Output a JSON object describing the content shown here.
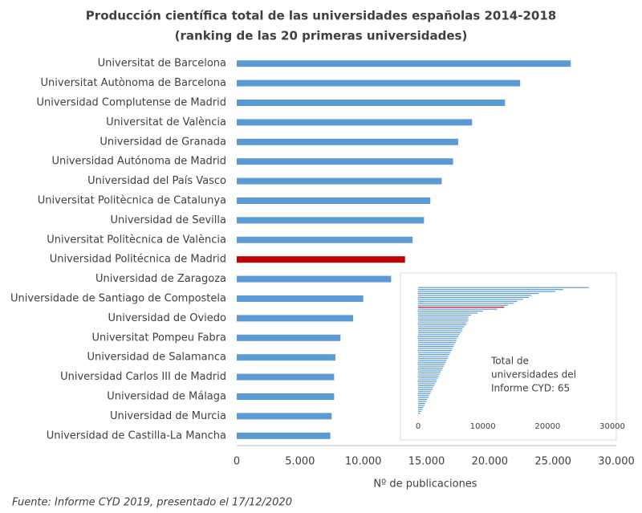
{
  "chart_data": [
    {
      "type": "hbar",
      "title": "Producción científica total de las universidades españolas 2014-2018",
      "subtitle": "(ranking de las 20 primeras universidades)",
      "categories": [
        "Universitat de Barcelona",
        "Universitat Autònoma de Barcelona",
        "Universidad Complutense de Madrid",
        "Universitat de València",
        "Universidad de Granada",
        "Universidad Autónoma de Madrid",
        "Universidad del País Vasco",
        "Universitat Politècnica de Catalunya",
        "Universidad de Sevilla",
        "Universitat Politècnica de València",
        "Universidad Politécnica de Madrid",
        "Universidad de Zaragoza",
        "Universidade de Santiago de Compostela",
        "Universidad de Oviedo",
        "Universitat Pompeu Fabra",
        "Universidad de Salamanca",
        "Universidad Carlos III de Madrid",
        "Universidad de Málaga",
        "Universidad de Murcia",
        "Universidad de Castilla-La Mancha"
      ],
      "values": [
        26400,
        22400,
        21200,
        18600,
        17500,
        17100,
        16200,
        15300,
        14800,
        13900,
        13300,
        12200,
        10000,
        9200,
        8200,
        7800,
        7700,
        7700,
        7500,
        7400
      ],
      "color": "#5b9bd5",
      "highlight_index": 10,
      "highlight_color": "#c00000",
      "xlim": [
        0,
        30000
      ],
      "xticks": [
        0,
        {
          "value": 5000,
          "label": "5.000"
        },
        {
          "value": 10000,
          "label": "10.000"
        },
        {
          "value": 15000,
          "label": "15.000"
        },
        {
          "value": 20000,
          "label": "20.000"
        },
        {
          "value": 25000,
          "label": "25.000"
        },
        {
          "value": 30000,
          "label": "30.000"
        }
      ],
      "xlabel": "Nº de publicaciones",
      "source": "Fuente: Informe CYD 2019, presentado el 17/12/2020"
    },
    {
      "type": "hbar-inset",
      "values": [
        26400,
        22400,
        21200,
        18600,
        17500,
        17100,
        16200,
        15300,
        14800,
        13900,
        13300,
        12200,
        10000,
        9200,
        8200,
        7800,
        7700,
        7700,
        7500,
        7400,
        7100,
        6900,
        6800,
        6600,
        6400,
        6200,
        6000,
        5900,
        5800,
        5600,
        5500,
        5300,
        5200,
        5000,
        4900,
        4700,
        4600,
        4400,
        4300,
        4100,
        4000,
        3800,
        3700,
        3500,
        3400,
        3200,
        3100,
        2900,
        2800,
        2600,
        2500,
        2300,
        2200,
        2000,
        1900,
        1700,
        1600,
        1400,
        1300,
        1100,
        1000,
        800,
        700,
        500,
        300
      ],
      "color": "#5b9bd5",
      "highlight_index": 10,
      "highlight_color": "#c00000",
      "xlim": [
        0,
        30000
      ],
      "xticks": [
        0,
        10000,
        20000,
        30000
      ],
      "annotation": [
        "Total de",
        "universidades del",
        "Informe CYD: 65"
      ]
    }
  ]
}
